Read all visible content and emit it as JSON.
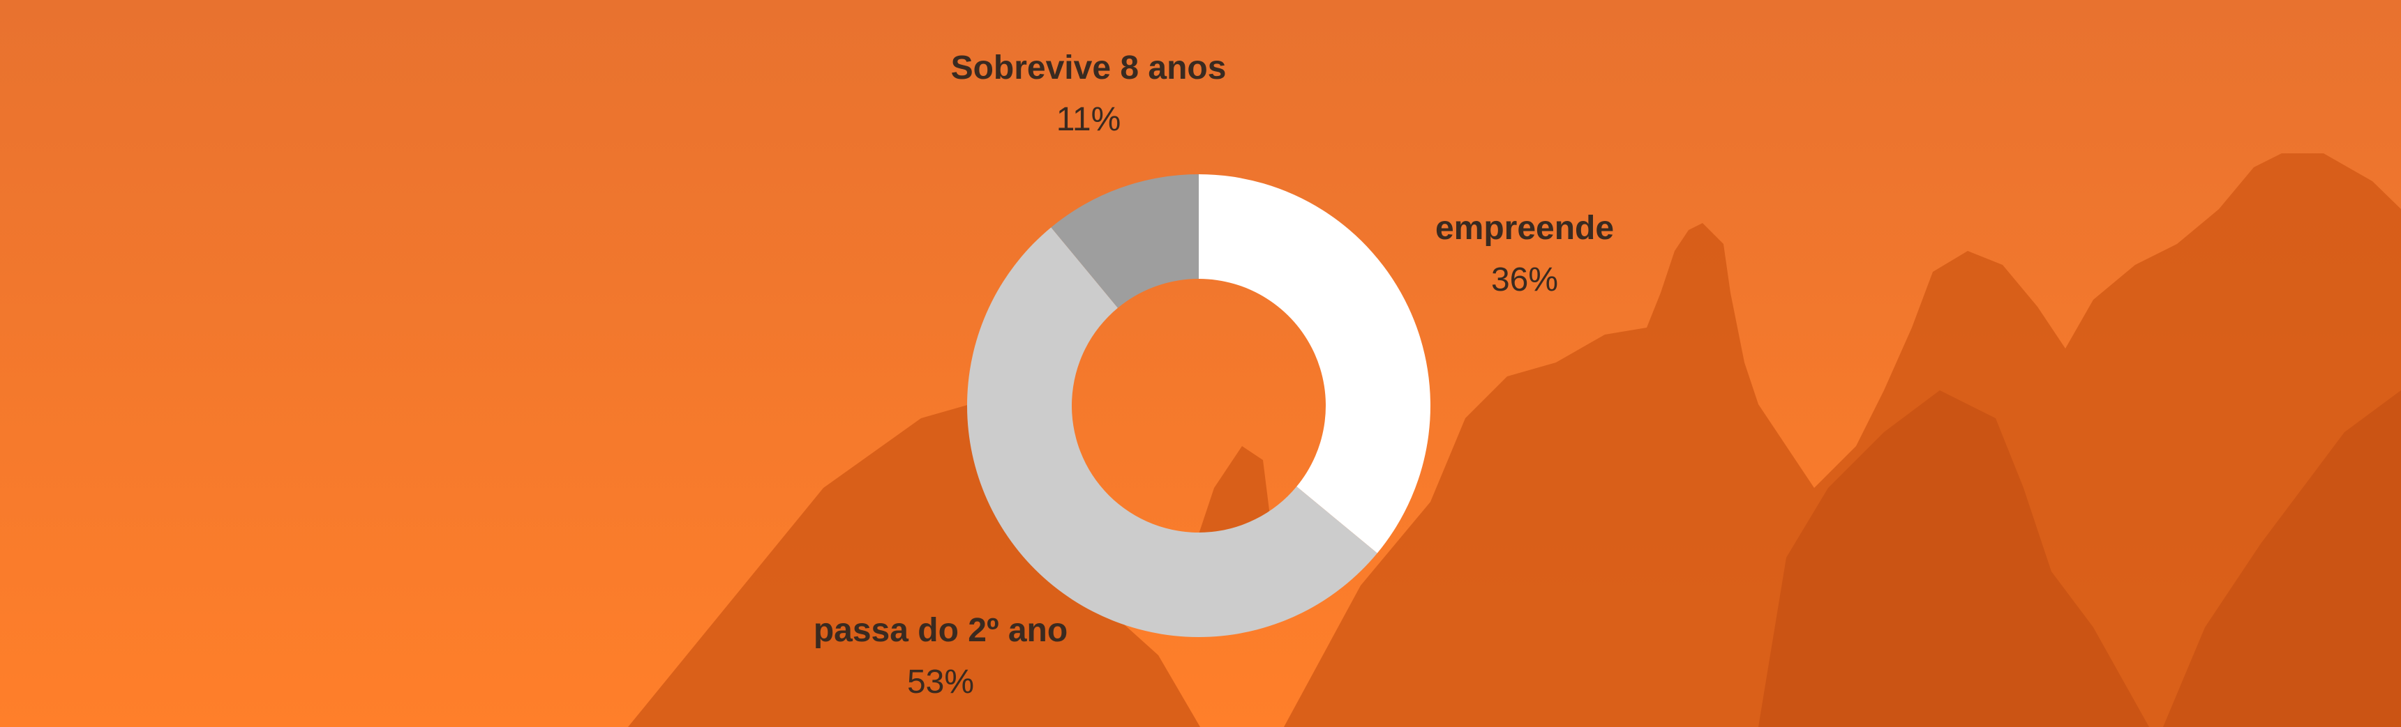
{
  "colors": {
    "background_top": "#e8722f",
    "background_bottom": "#ff7f2a",
    "mountain": "#d35a16",
    "mountain_dark": "#c24d10",
    "label_text": "#3a2a20"
  },
  "chart_data": {
    "type": "pie",
    "donut": true,
    "title": "",
    "legend": "none",
    "slices": [
      {
        "label": "empreende",
        "value": 36,
        "value_label": "36%",
        "color": "#ffffff"
      },
      {
        "label": "passa do 2º ano",
        "value": 53,
        "value_label": "53%",
        "color": "#cccccc"
      },
      {
        "label": "Sobrevive 8 anos",
        "value": 11,
        "value_label": "11%",
        "color": "#9e9e9e"
      }
    ]
  }
}
